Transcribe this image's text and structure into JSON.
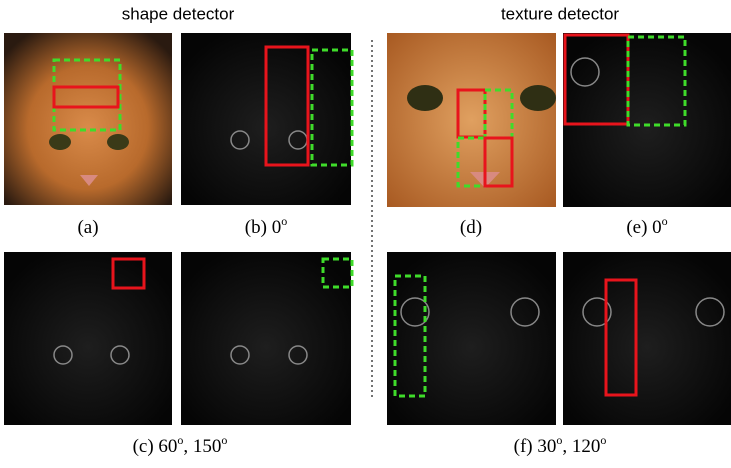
{
  "header": {
    "left": "shape detector",
    "right": "texture detector"
  },
  "captions": {
    "a": [
      "(a)"
    ],
    "b": [
      "(b) 0",
      "o"
    ],
    "c": [
      "(c) 60",
      "o",
      ", 150",
      "o"
    ],
    "d": [
      "(d)"
    ],
    "e": [
      "(e) 0",
      "o"
    ],
    "f": [
      "(f) 30",
      "o",
      ", 120",
      "o"
    ]
  }
}
